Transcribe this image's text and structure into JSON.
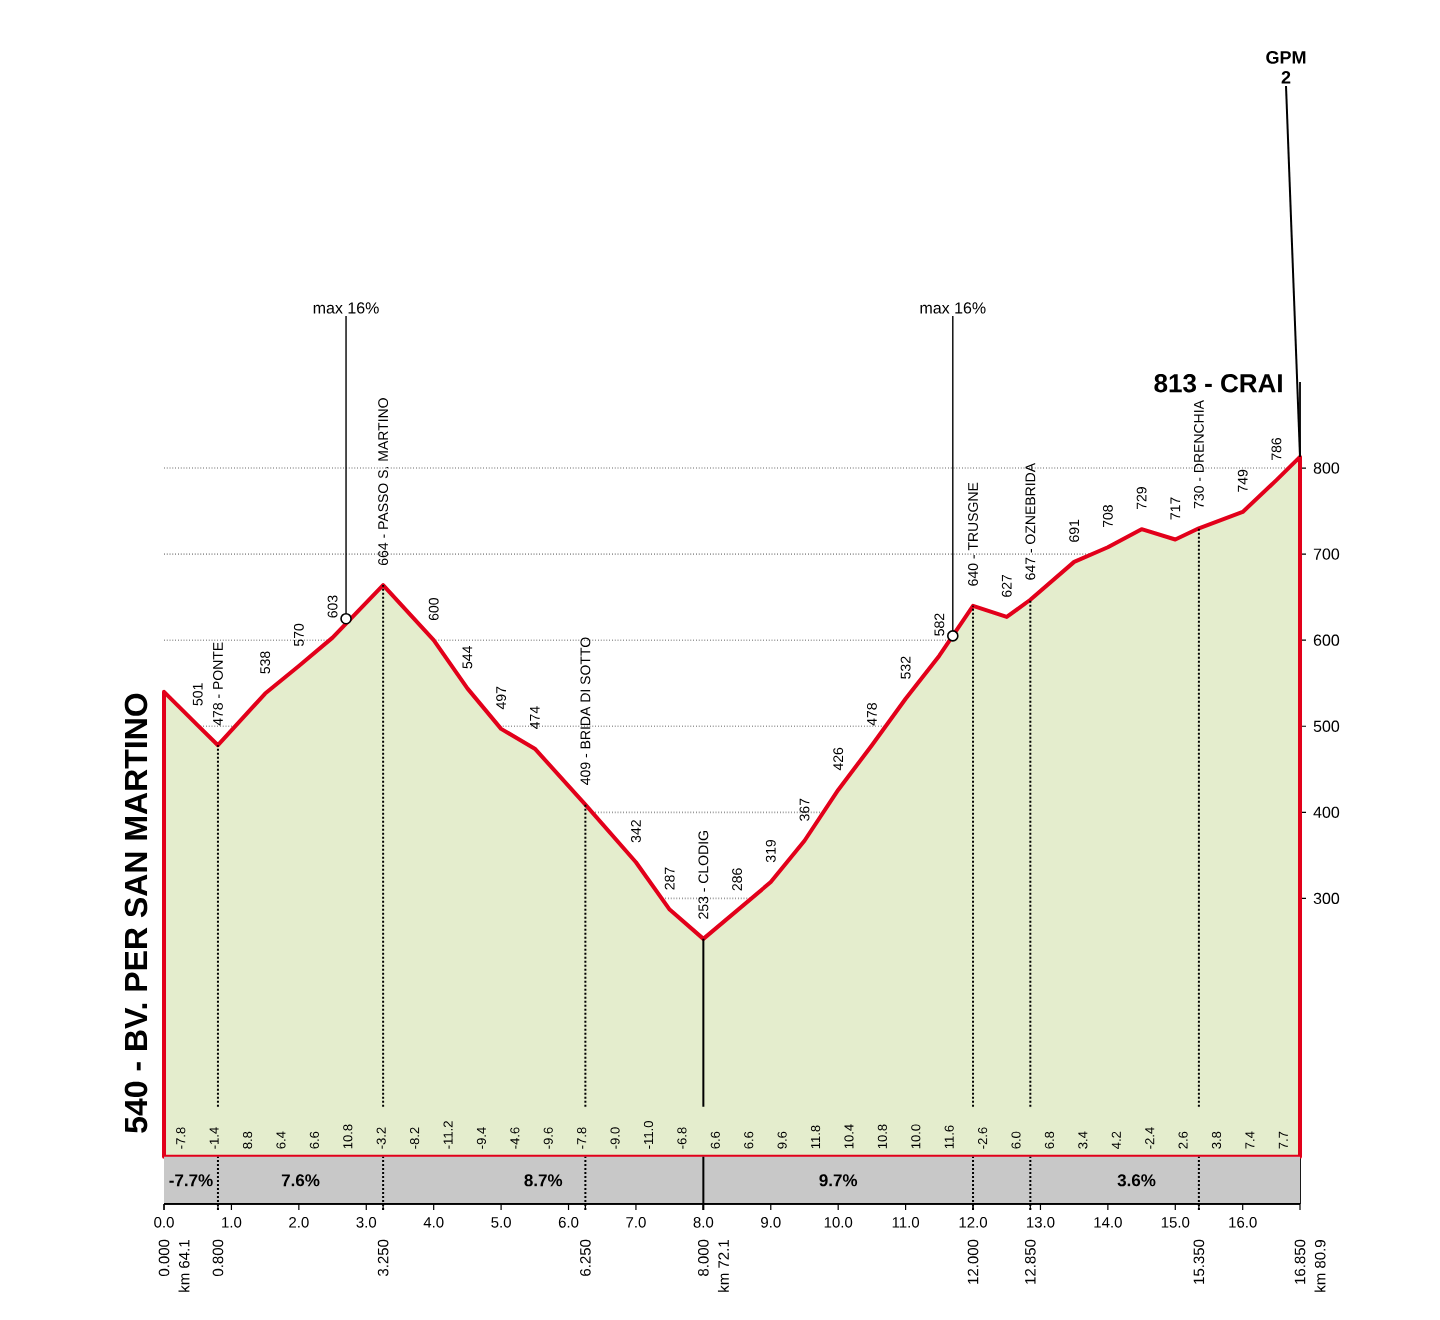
{
  "chart_data": {
    "type": "area",
    "x": [
      0,
      0.5,
      0.8,
      1.5,
      2.0,
      2.5,
      3.25,
      4.0,
      4.5,
      5.0,
      5.5,
      6.25,
      7.0,
      7.5,
      8.0,
      8.5,
      9.0,
      9.5,
      10.0,
      10.5,
      11.0,
      11.5,
      12.0,
      12.5,
      12.85,
      13.5,
      14.0,
      14.5,
      15.0,
      15.35,
      16.0,
      16.5,
      16.85
    ],
    "series": [
      {
        "color": "#e4edcd",
        "values": [
          540,
          501,
          478,
          538,
          570,
          603,
          664,
          600,
          544,
          497,
          474,
          409,
          342,
          287,
          253,
          286,
          319,
          367,
          426,
          478,
          532,
          582,
          640,
          627,
          647,
          691,
          708,
          729,
          717,
          730,
          749,
          786,
          813
        ],
        "value_labels": [
          "540 - BV. PER SAN MARTINO",
          "501",
          "478 - PONTE",
          "538",
          "570",
          "603",
          "664 - PASSO S. MARTINO",
          "600",
          "544",
          "497",
          "474",
          "409 - BRIDA DI SOTTO",
          "342",
          "287",
          "253 - CLODIG",
          "286",
          "319",
          "367",
          "426",
          "478",
          "532",
          "582",
          "640 - TRUSGNE",
          "627",
          "647 - OZNEBRIDA",
          "691",
          "708",
          "729",
          "717",
          "730 - DRENCHIA",
          "749",
          "786",
          "813 - CRAI"
        ]
      }
    ],
    "xlim": [
      0,
      16.85
    ],
    "xticks": [
      {
        "value": 0,
        "label": "0.0"
      },
      {
        "value": 1,
        "label": "1.0"
      },
      {
        "value": 2,
        "label": "2.0"
      },
      {
        "value": 3,
        "label": "3.0"
      },
      {
        "value": 4,
        "label": "4.0"
      },
      {
        "value": 5,
        "label": "5.0"
      },
      {
        "value": 6,
        "label": "6.0"
      },
      {
        "value": 7,
        "label": "7.0"
      },
      {
        "value": 8,
        "label": "8.0"
      },
      {
        "value": 9,
        "label": "9.0"
      },
      {
        "value": 10,
        "label": "10.0"
      },
      {
        "value": 11,
        "label": "11.0"
      },
      {
        "value": 12,
        "label": "12.0"
      },
      {
        "value": 13,
        "label": "13.0"
      },
      {
        "value": 14,
        "label": "14.0"
      },
      {
        "value": 15,
        "label": "15.0"
      },
      {
        "value": 16,
        "label": "16.0"
      }
    ],
    "x2lim": [
      0,
      16.85
    ],
    "x2ticks": [
      {
        "value": 0,
        "label": "0.000"
      },
      {
        "value": 0.8,
        "label": "0.800"
      },
      {
        "value": 3.25,
        "label": "3.250"
      },
      {
        "value": 6.25,
        "label": "6.250"
      },
      {
        "value": 8,
        "label": "8.000"
      },
      {
        "value": 12,
        "label": "12.000"
      },
      {
        "value": 12.85,
        "label": "12.850"
      },
      {
        "value": 15.35,
        "label": "15.350"
      },
      {
        "value": 16.85,
        "label": "16.850"
      }
    ],
    "ylim": [
      -55,
      900
    ],
    "yticks": [
      300,
      400,
      500,
      600,
      700,
      800
    ],
    "grid": "y",
    "ref_lines": [
      {
        "axis": "x",
        "value": 0.8,
        "line_style": "dotted"
      },
      {
        "axis": "x",
        "value": 3.25,
        "line_style": "dotted"
      },
      {
        "axis": "x",
        "value": 6.25,
        "line_style": "dotted"
      },
      {
        "axis": "x",
        "value": 8,
        "line_style": "solid"
      },
      {
        "axis": "x",
        "value": 12,
        "line_style": "dotted"
      },
      {
        "axis": "x",
        "value": 12.85,
        "line_style": "dotted"
      },
      {
        "axis": "x",
        "value": 15.35,
        "line_style": "dotted"
      }
    ],
    "bands": [
      {
        "axis": "x",
        "from": 0,
        "to": 0.8,
        "label": "-7.7%",
        "color": "#c8c8c8"
      },
      {
        "axis": "x",
        "from": 0.8,
        "to": 3.25,
        "label": "7.6%",
        "color": "#c8c8c8"
      },
      {
        "axis": "x",
        "from": 3.25,
        "to": 8,
        "label": "8.7%",
        "color": "#c8c8c8"
      },
      {
        "axis": "x",
        "from": 8,
        "to": 12,
        "label": "9.7%",
        "color": "#c8c8c8"
      },
      {
        "axis": "x",
        "from": 12,
        "to": 16.85,
        "label": "3.6%",
        "color": "#c8c8c8"
      }
    ],
    "annotations": [
      "-7.8",
      "-1.4",
      "8.8",
      "6.4",
      "6.6",
      "10.8",
      "-3.2",
      "-8.2",
      "-11.2",
      "-9.4",
      "-4.6",
      "-9.6",
      "-7.8",
      "-9.0",
      "-11.0",
      "-6.8",
      "6.6",
      "6.6",
      "9.6",
      "11.8",
      "10.4",
      "10.8",
      "10.0",
      "11.6",
      "-2.6",
      "6.0",
      "6.8",
      "3.4",
      "4.2",
      "-2.4",
      "2.6",
      "3.8",
      "7.4",
      "7.7",
      {
        "text": "km 64.1",
        "x": 0,
        "y": -55
      },
      {
        "text": "km 72.1",
        "x": 8,
        "y": -55
      },
      {
        "text": "km 80.9",
        "x": 16.85,
        "y": -55
      },
      {
        "text": "max 16%",
        "x": 2.7,
        "y": 625
      },
      {
        "text": "max 16%",
        "x": 11.7,
        "y": 605
      },
      {
        "text": "GPM 2",
        "x": 16.85,
        "y": 813
      }
    ]
  }
}
